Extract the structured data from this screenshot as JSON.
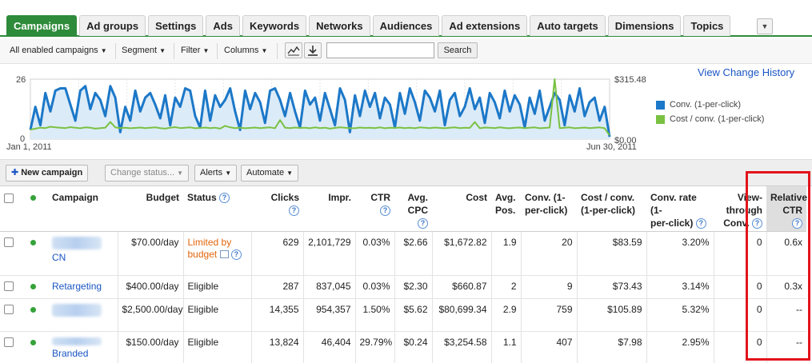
{
  "tabs": [
    {
      "label": "Campaigns",
      "active": true
    },
    {
      "label": "Ad groups"
    },
    {
      "label": "Settings"
    },
    {
      "label": "Ads"
    },
    {
      "label": "Keywords"
    },
    {
      "label": "Networks"
    },
    {
      "label": "Audiences"
    },
    {
      "label": "Ad extensions"
    },
    {
      "label": "Auto targets"
    },
    {
      "label": "Dimensions"
    },
    {
      "label": "Topics"
    }
  ],
  "tab_more_icon": "dropdown-arrow-icon",
  "toolbar": {
    "view_filter": "All enabled campaigns",
    "segment": "Segment",
    "filter": "Filter",
    "columns": "Columns",
    "search_value": "",
    "search_button": "Search"
  },
  "chart": {
    "view_change_history": "View Change History",
    "y_left_max": "26",
    "y_left_min": "0",
    "y_right_max": "$315.48",
    "y_right_min": "$0.00",
    "x_start": "Jan 1, 2011",
    "x_end": "Jun 30, 2011",
    "legend": [
      {
        "label": "Conv. (1-per-click)",
        "color": "#1c78c8"
      },
      {
        "label": "Cost / conv. (1-per-click)",
        "color": "#7ac142"
      }
    ]
  },
  "chart_data": {
    "type": "line",
    "x_range": [
      "Jan 1, 2011",
      "Jun 30, 2011"
    ],
    "series": [
      {
        "name": "Conv. (1-per-click)",
        "axis": "left",
        "ylim": [
          0,
          26
        ],
        "values": [
          4,
          14,
          6,
          20,
          12,
          21,
          22,
          22,
          15,
          8,
          21,
          23,
          13,
          20,
          17,
          10,
          23,
          18,
          3,
          14,
          8,
          21,
          12,
          18,
          20,
          15,
          9,
          19,
          6,
          18,
          14,
          22,
          21,
          10,
          5,
          21,
          8,
          19,
          14,
          17,
          22,
          12,
          4,
          21,
          13,
          20,
          16,
          7,
          21,
          22,
          17,
          10,
          20,
          12,
          5,
          21,
          15,
          18,
          8,
          20,
          13,
          6,
          22,
          17,
          3,
          19,
          10,
          21,
          14,
          20,
          9,
          18,
          15,
          5,
          20,
          11,
          22,
          16,
          8,
          21,
          18,
          12,
          21,
          6,
          17,
          20,
          10,
          14,
          22,
          13,
          18,
          7,
          20,
          16,
          9,
          21,
          12,
          19,
          15,
          5,
          18,
          11,
          21,
          8,
          14,
          20,
          17,
          6,
          19,
          12,
          22,
          10,
          16,
          18,
          8,
          14,
          1
        ]
      },
      {
        "name": "Cost / conv. (1-per-click)",
        "axis": "right",
        "ylim": [
          0,
          315.48
        ],
        "values": [
          50,
          55,
          60,
          58,
          65,
          62,
          60,
          58,
          63,
          60,
          57,
          62,
          60,
          55,
          58,
          60,
          90,
          62,
          58,
          60,
          57,
          59,
          61,
          58,
          60,
          62,
          58,
          55,
          60,
          63,
          58,
          60,
          62,
          57,
          59,
          61,
          58,
          60,
          55,
          70,
          62,
          58,
          60,
          57,
          59,
          61,
          58,
          60,
          62,
          57,
          100,
          60,
          58,
          61,
          59,
          60,
          57,
          62,
          58,
          60,
          55,
          59,
          62,
          60,
          58,
          57,
          61,
          59,
          60,
          58,
          62,
          57,
          60,
          59,
          61,
          58,
          60,
          57,
          62,
          60,
          58,
          61,
          59,
          57,
          60,
          62,
          58,
          60,
          59,
          90,
          57,
          61,
          60,
          58,
          62,
          59,
          57,
          60,
          61,
          58,
          60,
          62,
          57,
          59,
          61,
          320,
          58,
          60,
          62,
          57,
          59,
          61,
          58,
          60,
          62,
          57,
          20
        ]
      }
    ],
    "grid": true
  },
  "actions": {
    "new_campaign": "New campaign",
    "change_status": "Change status...",
    "alerts": "Alerts",
    "automate": "Automate"
  },
  "table": {
    "headers": {
      "campaign": "Campaign",
      "budget": "Budget",
      "status": "Status",
      "clicks": "Clicks",
      "impr": "Impr.",
      "ctr": "CTR",
      "avg_cpc_1": "Avg.",
      "avg_cpc_2": "CPC",
      "cost": "Cost",
      "avg_pos_1": "Avg.",
      "avg_pos_2": "Pos.",
      "conv_1": "Conv. (1-",
      "conv_2": "per-click)",
      "cost_conv_1": "Cost / conv.",
      "cost_conv_2": "(1-per-click)",
      "conv_rate_1": "Conv. rate (1-",
      "conv_rate_2": "per-click)",
      "view_1": "View-",
      "view_2": "through",
      "view_3": "Conv.",
      "rel_ctr_1": "Relative",
      "rel_ctr_2": "CTR",
      "help": "?"
    },
    "rows": [
      {
        "campaign": "CN",
        "blurred": true,
        "budget": "$70.00/day",
        "status_1": "Limited by",
        "status_2": "budget",
        "limited": true,
        "clicks": "629",
        "impr": "2,101,729",
        "ctr": "0.03%",
        "cpc": "$2.66",
        "cost": "$1,672.82",
        "pos": "1.9",
        "conv": "20",
        "cost_conv": "$83.59",
        "conv_rate": "3.20%",
        "view": "0",
        "rel_ctr": "0.6x"
      },
      {
        "campaign": "Retargeting",
        "blurred": false,
        "budget": "$400.00/day",
        "status_1": "Eligible",
        "status_2": "",
        "limited": false,
        "clicks": "287",
        "impr": "837,045",
        "ctr": "0.03%",
        "cpc": "$2.30",
        "cost": "$660.87",
        "pos": "2",
        "conv": "9",
        "cost_conv": "$73.43",
        "conv_rate": "3.14%",
        "view": "0",
        "rel_ctr": "0.3x"
      },
      {
        "campaign": "",
        "blurred": true,
        "budget": "$2,500.00/day",
        "status_1": "Eligible",
        "status_2": "",
        "limited": false,
        "clicks": "14,355",
        "impr": "954,357",
        "ctr": "1.50%",
        "cpc": "$5.62",
        "cost": "$80,699.34",
        "pos": "2.9",
        "conv": "759",
        "cost_conv": "$105.89",
        "conv_rate": "5.32%",
        "view": "0",
        "rel_ctr": "--"
      },
      {
        "campaign": "Branded",
        "blurred": true,
        "budget": "$150.00/day",
        "status_1": "Eligible",
        "status_2": "",
        "limited": false,
        "clicks": "13,824",
        "impr": "46,404",
        "ctr": "29.79%",
        "cpc": "$0.24",
        "cost": "$3,254.58",
        "pos": "1.1",
        "conv": "407",
        "cost_conv": "$7.98",
        "conv_rate": "2.95%",
        "view": "0",
        "rel_ctr": "--"
      }
    ]
  },
  "colors": {
    "tab_active": "#2e8b3a",
    "link": "#1a55c4",
    "limited": "#e0650c",
    "status_dot": "#35a23a",
    "highlight_box": "#e2141b"
  }
}
